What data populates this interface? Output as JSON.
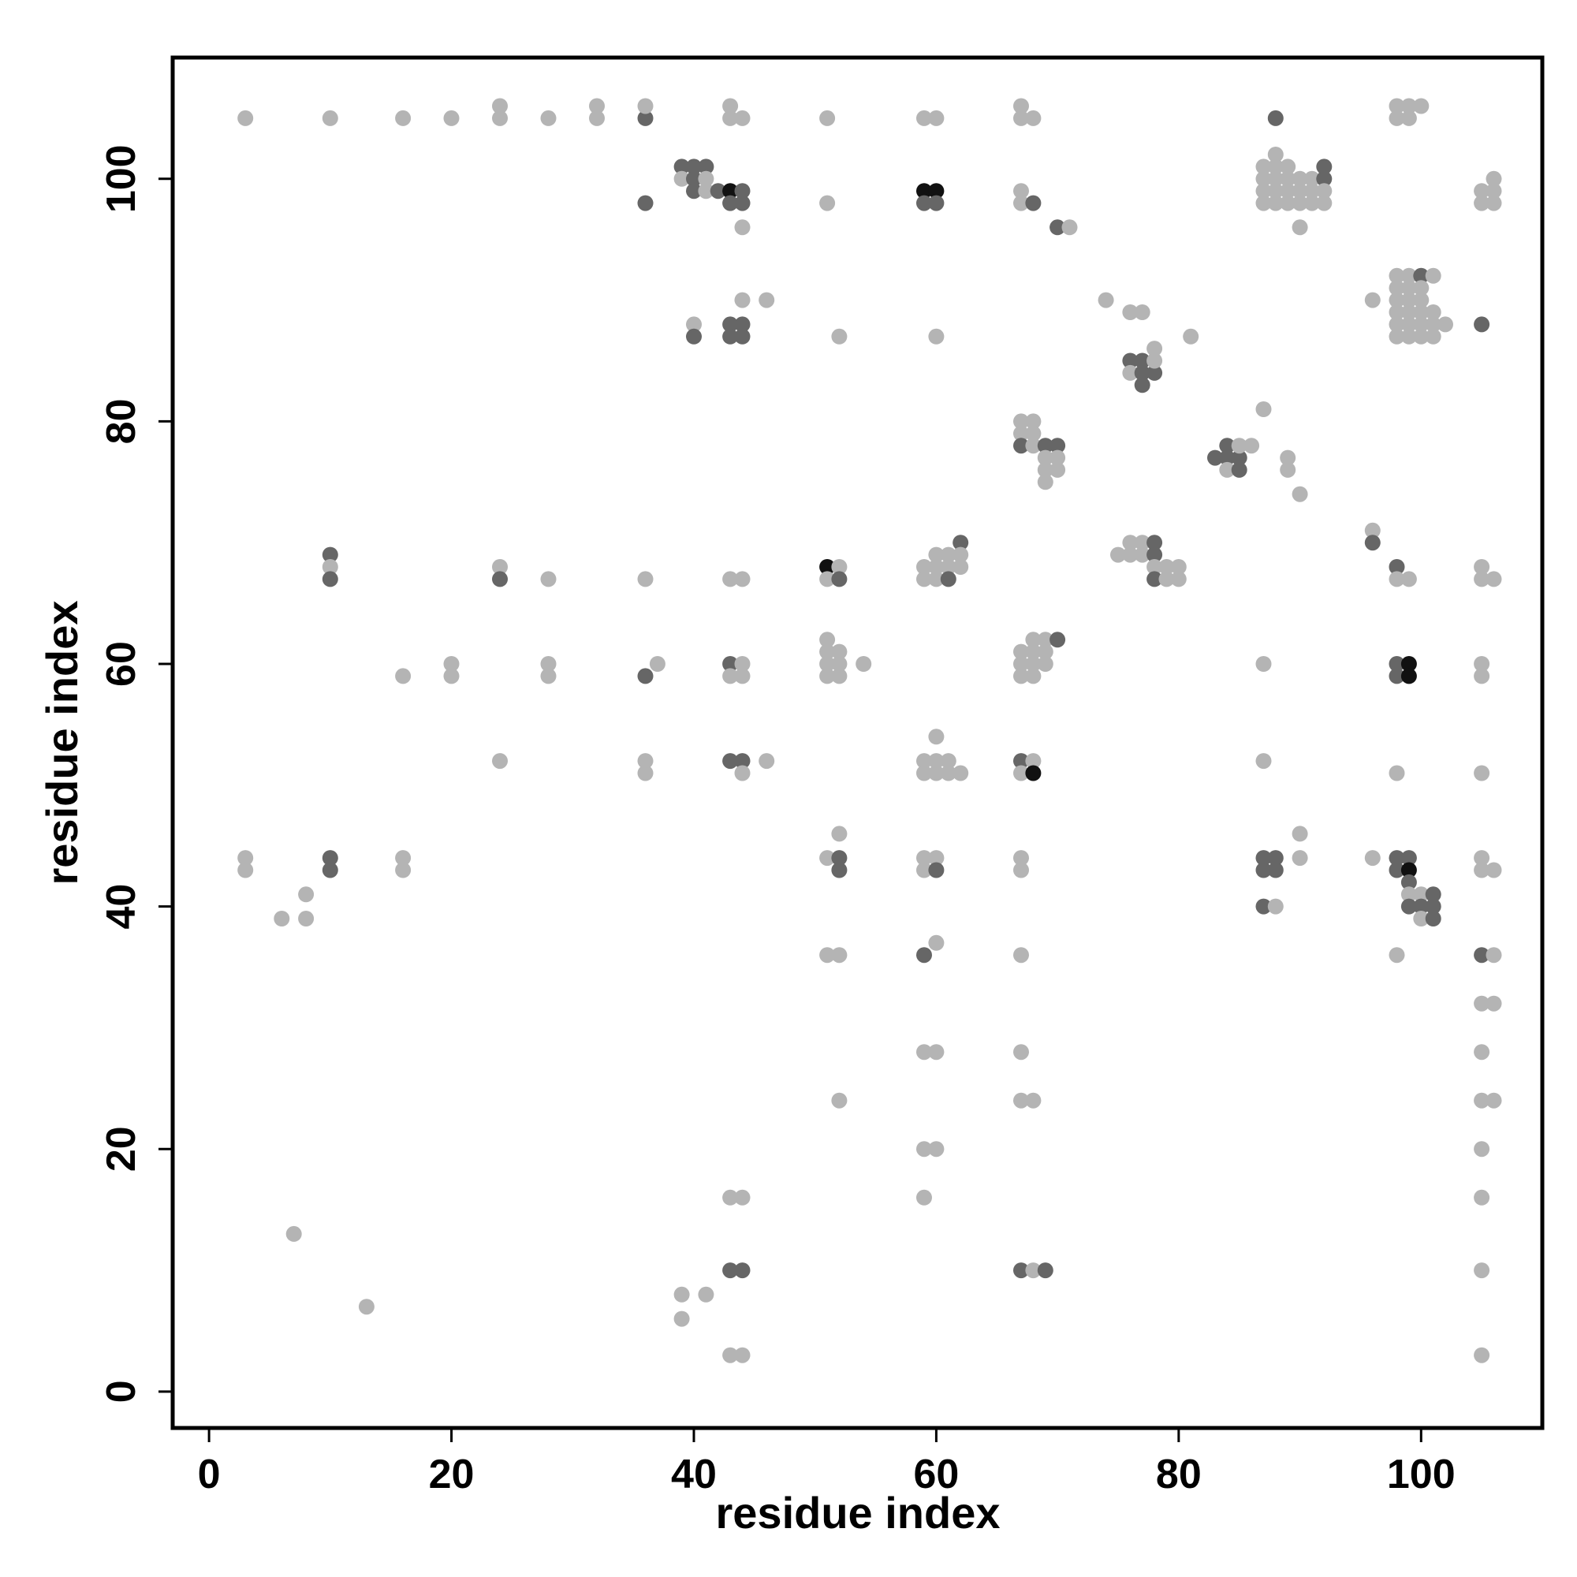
{
  "chart_data": {
    "type": "scatter",
    "title": "",
    "xlabel": "residue index",
    "ylabel": "residue index",
    "xlim": [
      -3,
      110
    ],
    "ylim": [
      -3,
      110
    ],
    "xticks": [
      0,
      20,
      40,
      60,
      80,
      100
    ],
    "yticks": [
      0,
      20,
      40,
      60,
      80,
      100
    ],
    "grid": false,
    "legend": "none",
    "colors": {
      "light": "#b4b4b4",
      "mid": "#8a8a8a",
      "dark": "#666666",
      "black": "#111111"
    },
    "points": [
      [
        3,
        105,
        "light"
      ],
      [
        10,
        105,
        "light"
      ],
      [
        16,
        105,
        "light"
      ],
      [
        20,
        105,
        "light"
      ],
      [
        24,
        105,
        "light"
      ],
      [
        24,
        106,
        "light"
      ],
      [
        28,
        105,
        "light"
      ],
      [
        32,
        105,
        "light"
      ],
      [
        32,
        106,
        "light"
      ],
      [
        36,
        105,
        "dark"
      ],
      [
        36,
        106,
        "light"
      ],
      [
        43,
        105,
        "light"
      ],
      [
        43,
        106,
        "light"
      ],
      [
        44,
        105,
        "light"
      ],
      [
        51,
        105,
        "light"
      ],
      [
        59,
        105,
        "light"
      ],
      [
        60,
        105,
        "light"
      ],
      [
        67,
        105,
        "light"
      ],
      [
        67,
        106,
        "light"
      ],
      [
        68,
        105,
        "light"
      ],
      [
        88,
        105,
        "dark"
      ],
      [
        98,
        105,
        "light"
      ],
      [
        98,
        106,
        "light"
      ],
      [
        99,
        105,
        "light"
      ],
      [
        99,
        106,
        "light"
      ],
      [
        100,
        106,
        "light"
      ],
      [
        39,
        101,
        "dark"
      ],
      [
        40,
        101,
        "dark"
      ],
      [
        41,
        101,
        "dark"
      ],
      [
        39,
        100,
        "light"
      ],
      [
        40,
        100,
        "dark"
      ],
      [
        41,
        100,
        "light"
      ],
      [
        40,
        99,
        "dark"
      ],
      [
        41,
        99,
        "light"
      ],
      [
        42,
        99,
        "dark"
      ],
      [
        43,
        99,
        "black"
      ],
      [
        44,
        99,
        "dark"
      ],
      [
        43,
        98,
        "dark"
      ],
      [
        44,
        98,
        "dark"
      ],
      [
        36,
        98,
        "dark"
      ],
      [
        44,
        96,
        "light"
      ],
      [
        51,
        98,
        "light"
      ],
      [
        59,
        99,
        "black"
      ],
      [
        60,
        99,
        "black"
      ],
      [
        59,
        98,
        "dark"
      ],
      [
        60,
        98,
        "dark"
      ],
      [
        67,
        99,
        "light"
      ],
      [
        67,
        98,
        "light"
      ],
      [
        68,
        98,
        "dark"
      ],
      [
        70,
        96,
        "dark"
      ],
      [
        71,
        96,
        "light"
      ],
      [
        87,
        101,
        "light"
      ],
      [
        88,
        102,
        "light"
      ],
      [
        88,
        101,
        "light"
      ],
      [
        89,
        101,
        "light"
      ],
      [
        87,
        100,
        "light"
      ],
      [
        88,
        100,
        "light"
      ],
      [
        89,
        100,
        "light"
      ],
      [
        90,
        100,
        "light"
      ],
      [
        91,
        100,
        "light"
      ],
      [
        92,
        100,
        "dark"
      ],
      [
        92,
        101,
        "dark"
      ],
      [
        87,
        99,
        "light"
      ],
      [
        88,
        99,
        "light"
      ],
      [
        89,
        99,
        "light"
      ],
      [
        90,
        99,
        "light"
      ],
      [
        91,
        99,
        "light"
      ],
      [
        92,
        99,
        "light"
      ],
      [
        87,
        98,
        "light"
      ],
      [
        88,
        98,
        "light"
      ],
      [
        89,
        98,
        "light"
      ],
      [
        90,
        98,
        "light"
      ],
      [
        91,
        98,
        "light"
      ],
      [
        92,
        98,
        "light"
      ],
      [
        90,
        96,
        "light"
      ],
      [
        105,
        99,
        "light"
      ],
      [
        106,
        99,
        "light"
      ],
      [
        106,
        100,
        "light"
      ],
      [
        105,
        98,
        "light"
      ],
      [
        106,
        98,
        "light"
      ],
      [
        40,
        88,
        "light"
      ],
      [
        40,
        87,
        "dark"
      ],
      [
        43,
        88,
        "dark"
      ],
      [
        44,
        88,
        "dark"
      ],
      [
        43,
        87,
        "dark"
      ],
      [
        44,
        87,
        "dark"
      ],
      [
        44,
        90,
        "light"
      ],
      [
        46,
        90,
        "light"
      ],
      [
        52,
        87,
        "light"
      ],
      [
        60,
        87,
        "light"
      ],
      [
        74,
        90,
        "light"
      ],
      [
        76,
        89,
        "light"
      ],
      [
        77,
        89,
        "light"
      ],
      [
        81,
        87,
        "light"
      ],
      [
        76,
        85,
        "dark"
      ],
      [
        77,
        85,
        "dark"
      ],
      [
        76,
        84,
        "light"
      ],
      [
        77,
        84,
        "dark"
      ],
      [
        78,
        84,
        "dark"
      ],
      [
        78,
        85,
        "light"
      ],
      [
        78,
        86,
        "light"
      ],
      [
        77,
        83,
        "dark"
      ],
      [
        96,
        90,
        "light"
      ],
      [
        98,
        92,
        "light"
      ],
      [
        99,
        92,
        "light"
      ],
      [
        100,
        92,
        "dark"
      ],
      [
        101,
        92,
        "light"
      ],
      [
        98,
        91,
        "light"
      ],
      [
        99,
        91,
        "light"
      ],
      [
        100,
        91,
        "light"
      ],
      [
        98,
        90,
        "light"
      ],
      [
        99,
        90,
        "light"
      ],
      [
        100,
        90,
        "light"
      ],
      [
        98,
        89,
        "light"
      ],
      [
        99,
        89,
        "light"
      ],
      [
        100,
        89,
        "light"
      ],
      [
        101,
        89,
        "light"
      ],
      [
        98,
        88,
        "light"
      ],
      [
        99,
        88,
        "light"
      ],
      [
        100,
        88,
        "light"
      ],
      [
        101,
        88,
        "light"
      ],
      [
        102,
        88,
        "light"
      ],
      [
        98,
        87,
        "light"
      ],
      [
        99,
        87,
        "light"
      ],
      [
        100,
        87,
        "light"
      ],
      [
        101,
        87,
        "light"
      ],
      [
        105,
        88,
        "dark"
      ],
      [
        67,
        80,
        "light"
      ],
      [
        68,
        80,
        "light"
      ],
      [
        67,
        79,
        "light"
      ],
      [
        68,
        79,
        "light"
      ],
      [
        67,
        78,
        "dark"
      ],
      [
        68,
        78,
        "light"
      ],
      [
        69,
        78,
        "dark"
      ],
      [
        70,
        78,
        "dark"
      ],
      [
        69,
        77,
        "light"
      ],
      [
        70,
        77,
        "light"
      ],
      [
        69,
        76,
        "light"
      ],
      [
        70,
        76,
        "light"
      ],
      [
        69,
        75,
        "light"
      ],
      [
        83,
        77,
        "dark"
      ],
      [
        84,
        77,
        "dark"
      ],
      [
        84,
        78,
        "dark"
      ],
      [
        85,
        77,
        "dark"
      ],
      [
        85,
        78,
        "light"
      ],
      [
        86,
        78,
        "light"
      ],
      [
        84,
        76,
        "light"
      ],
      [
        85,
        76,
        "dark"
      ],
      [
        87,
        81,
        "light"
      ],
      [
        89,
        77,
        "light"
      ],
      [
        89,
        76,
        "light"
      ],
      [
        90,
        74,
        "light"
      ],
      [
        10,
        69,
        "dark"
      ],
      [
        10,
        68,
        "light"
      ],
      [
        10,
        67,
        "dark"
      ],
      [
        24,
        68,
        "light"
      ],
      [
        24,
        67,
        "dark"
      ],
      [
        28,
        67,
        "light"
      ],
      [
        36,
        67,
        "light"
      ],
      [
        43,
        67,
        "light"
      ],
      [
        44,
        67,
        "light"
      ],
      [
        51,
        68,
        "black"
      ],
      [
        52,
        68,
        "light"
      ],
      [
        51,
        67,
        "light"
      ],
      [
        52,
        67,
        "dark"
      ],
      [
        59,
        68,
        "light"
      ],
      [
        60,
        69,
        "light"
      ],
      [
        61,
        69,
        "light"
      ],
      [
        62,
        70,
        "dark"
      ],
      [
        62,
        69,
        "light"
      ],
      [
        60,
        68,
        "light"
      ],
      [
        61,
        68,
        "light"
      ],
      [
        62,
        68,
        "light"
      ],
      [
        59,
        67,
        "light"
      ],
      [
        60,
        67,
        "light"
      ],
      [
        61,
        67,
        "dark"
      ],
      [
        75,
        69,
        "light"
      ],
      [
        76,
        69,
        "light"
      ],
      [
        76,
        70,
        "light"
      ],
      [
        77,
        70,
        "light"
      ],
      [
        77,
        69,
        "light"
      ],
      [
        78,
        70,
        "dark"
      ],
      [
        78,
        69,
        "dark"
      ],
      [
        78,
        68,
        "light"
      ],
      [
        79,
        68,
        "light"
      ],
      [
        80,
        68,
        "light"
      ],
      [
        78,
        67,
        "dark"
      ],
      [
        79,
        67,
        "light"
      ],
      [
        80,
        67,
        "light"
      ],
      [
        96,
        71,
        "light"
      ],
      [
        96,
        70,
        "dark"
      ],
      [
        98,
        68,
        "dark"
      ],
      [
        98,
        67,
        "light"
      ],
      [
        99,
        67,
        "light"
      ],
      [
        105,
        68,
        "light"
      ],
      [
        105,
        67,
        "light"
      ],
      [
        106,
        67,
        "light"
      ],
      [
        16,
        59,
        "light"
      ],
      [
        20,
        60,
        "light"
      ],
      [
        20,
        59,
        "light"
      ],
      [
        28,
        60,
        "light"
      ],
      [
        28,
        59,
        "light"
      ],
      [
        36,
        59,
        "dark"
      ],
      [
        37,
        60,
        "light"
      ],
      [
        43,
        60,
        "dark"
      ],
      [
        44,
        60,
        "light"
      ],
      [
        43,
        59,
        "light"
      ],
      [
        44,
        59,
        "light"
      ],
      [
        51,
        62,
        "light"
      ],
      [
        51,
        61,
        "light"
      ],
      [
        52,
        61,
        "light"
      ],
      [
        51,
        60,
        "light"
      ],
      [
        52,
        60,
        "light"
      ],
      [
        51,
        59,
        "light"
      ],
      [
        52,
        59,
        "light"
      ],
      [
        54,
        60,
        "light"
      ],
      [
        67,
        61,
        "light"
      ],
      [
        68,
        61,
        "light"
      ],
      [
        68,
        62,
        "light"
      ],
      [
        69,
        62,
        "light"
      ],
      [
        69,
        61,
        "light"
      ],
      [
        70,
        62,
        "dark"
      ],
      [
        67,
        60,
        "light"
      ],
      [
        68,
        60,
        "light"
      ],
      [
        69,
        60,
        "light"
      ],
      [
        67,
        59,
        "light"
      ],
      [
        68,
        59,
        "light"
      ],
      [
        87,
        60,
        "light"
      ],
      [
        98,
        60,
        "dark"
      ],
      [
        99,
        60,
        "black"
      ],
      [
        98,
        59,
        "dark"
      ],
      [
        99,
        59,
        "black"
      ],
      [
        105,
        60,
        "light"
      ],
      [
        105,
        59,
        "light"
      ],
      [
        24,
        52,
        "light"
      ],
      [
        36,
        52,
        "light"
      ],
      [
        36,
        51,
        "light"
      ],
      [
        43,
        52,
        "dark"
      ],
      [
        44,
        52,
        "dark"
      ],
      [
        44,
        51,
        "light"
      ],
      [
        46,
        52,
        "light"
      ],
      [
        60,
        54,
        "light"
      ],
      [
        59,
        52,
        "light"
      ],
      [
        60,
        52,
        "light"
      ],
      [
        61,
        52,
        "light"
      ],
      [
        59,
        51,
        "light"
      ],
      [
        60,
        51,
        "light"
      ],
      [
        61,
        51,
        "light"
      ],
      [
        62,
        51,
        "light"
      ],
      [
        67,
        52,
        "dark"
      ],
      [
        68,
        52,
        "light"
      ],
      [
        67,
        51,
        "light"
      ],
      [
        68,
        51,
        "black"
      ],
      [
        87,
        52,
        "light"
      ],
      [
        98,
        51,
        "light"
      ],
      [
        105,
        51,
        "light"
      ],
      [
        3,
        44,
        "light"
      ],
      [
        3,
        43,
        "light"
      ],
      [
        6,
        39,
        "light"
      ],
      [
        8,
        41,
        "light"
      ],
      [
        8,
        39,
        "light"
      ],
      [
        10,
        44,
        "dark"
      ],
      [
        10,
        43,
        "dark"
      ],
      [
        16,
        44,
        "light"
      ],
      [
        16,
        43,
        "light"
      ],
      [
        51,
        44,
        "light"
      ],
      [
        52,
        46,
        "light"
      ],
      [
        52,
        44,
        "dark"
      ],
      [
        52,
        43,
        "dark"
      ],
      [
        59,
        44,
        "light"
      ],
      [
        60,
        44,
        "light"
      ],
      [
        59,
        43,
        "light"
      ],
      [
        60,
        43,
        "dark"
      ],
      [
        67,
        44,
        "light"
      ],
      [
        67,
        43,
        "light"
      ],
      [
        87,
        44,
        "dark"
      ],
      [
        88,
        44,
        "dark"
      ],
      [
        87,
        43,
        "dark"
      ],
      [
        88,
        43,
        "dark"
      ],
      [
        87,
        40,
        "dark"
      ],
      [
        88,
        40,
        "light"
      ],
      [
        90,
        46,
        "light"
      ],
      [
        90,
        44,
        "light"
      ],
      [
        96,
        44,
        "light"
      ],
      [
        98,
        44,
        "dark"
      ],
      [
        99,
        44,
        "dark"
      ],
      [
        98,
        43,
        "dark"
      ],
      [
        99,
        43,
        "black"
      ],
      [
        99,
        42,
        "dark"
      ],
      [
        99,
        41,
        "light"
      ],
      [
        100,
        41,
        "light"
      ],
      [
        101,
        41,
        "dark"
      ],
      [
        99,
        40,
        "dark"
      ],
      [
        100,
        40,
        "dark"
      ],
      [
        101,
        40,
        "dark"
      ],
      [
        100,
        39,
        "light"
      ],
      [
        101,
        39,
        "dark"
      ],
      [
        105,
        44,
        "light"
      ],
      [
        105,
        43,
        "light"
      ],
      [
        106,
        43,
        "light"
      ],
      [
        51,
        36,
        "light"
      ],
      [
        52,
        36,
        "light"
      ],
      [
        59,
        36,
        "dark"
      ],
      [
        60,
        37,
        "light"
      ],
      [
        67,
        36,
        "light"
      ],
      [
        98,
        36,
        "light"
      ],
      [
        105,
        36,
        "dark"
      ],
      [
        106,
        36,
        "light"
      ],
      [
        105,
        32,
        "light"
      ],
      [
        106,
        32,
        "light"
      ],
      [
        59,
        28,
        "light"
      ],
      [
        60,
        28,
        "light"
      ],
      [
        67,
        28,
        "light"
      ],
      [
        52,
        24,
        "light"
      ],
      [
        67,
        24,
        "light"
      ],
      [
        68,
        24,
        "light"
      ],
      [
        105,
        28,
        "light"
      ],
      [
        105,
        24,
        "light"
      ],
      [
        106,
        24,
        "light"
      ],
      [
        59,
        20,
        "light"
      ],
      [
        60,
        20,
        "light"
      ],
      [
        105,
        20,
        "light"
      ],
      [
        43,
        16,
        "light"
      ],
      [
        44,
        16,
        "light"
      ],
      [
        59,
        16,
        "light"
      ],
      [
        105,
        16,
        "light"
      ],
      [
        7,
        13,
        "light"
      ],
      [
        43,
        10,
        "dark"
      ],
      [
        44,
        10,
        "dark"
      ],
      [
        67,
        10,
        "dark"
      ],
      [
        68,
        10,
        "light"
      ],
      [
        69,
        10,
        "dark"
      ],
      [
        105,
        10,
        "light"
      ],
      [
        13,
        7,
        "light"
      ],
      [
        39,
        8,
        "light"
      ],
      [
        41,
        8,
        "light"
      ],
      [
        39,
        6,
        "light"
      ],
      [
        43,
        3,
        "light"
      ],
      [
        44,
        3,
        "light"
      ],
      [
        105,
        3,
        "light"
      ]
    ]
  }
}
